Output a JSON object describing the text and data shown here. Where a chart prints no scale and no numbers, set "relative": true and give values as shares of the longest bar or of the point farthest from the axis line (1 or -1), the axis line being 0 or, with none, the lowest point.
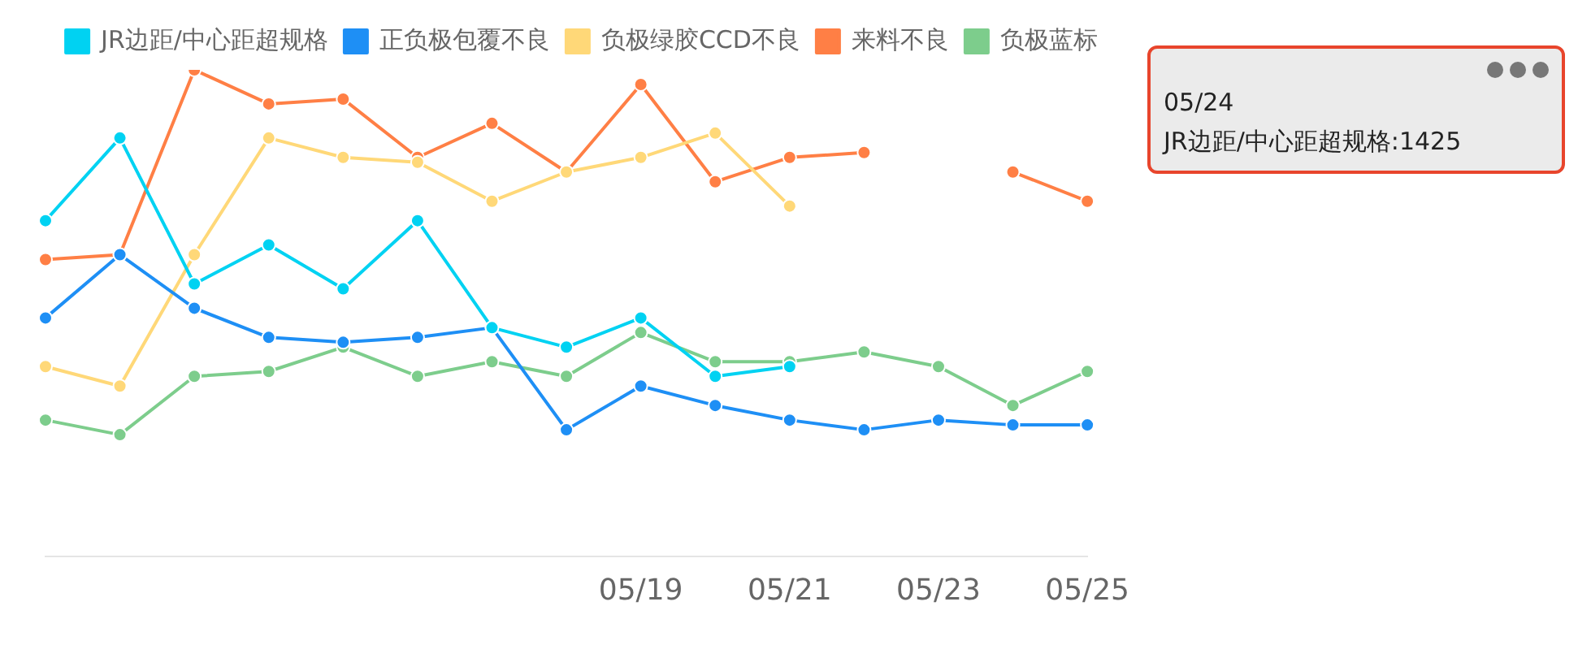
{
  "chart_data": {
    "type": "line",
    "relative": true,
    "marker": "circle",
    "legend": "top",
    "categories": [
      null,
      null,
      null,
      null,
      null,
      null,
      null,
      null,
      "05/19",
      null,
      "05/21",
      null,
      "05/23",
      null,
      "05/25"
    ],
    "series": [
      {
        "name": "JR边距/中心距超规格",
        "color": "#00d2f2",
        "values": [
          0.69,
          0.86,
          0.56,
          0.64,
          0.55,
          0.69,
          0.47,
          0.43,
          0.49,
          0.37,
          0.39,
          null,
          null,
          null,
          null
        ]
      },
      {
        "name": "正负极包覆不良",
        "color": "#1e8ff5",
        "values": [
          0.49,
          0.62,
          0.51,
          0.45,
          0.44,
          0.45,
          0.47,
          0.26,
          0.35,
          0.31,
          0.28,
          0.26,
          0.28,
          0.27,
          0.27
        ]
      },
      {
        "name": "负极绿胶CCD不良",
        "color": "#ffd878",
        "values": [
          0.39,
          0.35,
          0.62,
          0.86,
          0.82,
          0.81,
          0.73,
          0.79,
          0.82,
          0.87,
          0.72,
          null,
          null,
          null,
          null
        ]
      },
      {
        "name": "来料不良",
        "color": "#ff7f45",
        "values": [
          0.61,
          0.62,
          1.0,
          0.93,
          0.94,
          0.82,
          0.89,
          0.79,
          0.97,
          0.77,
          0.82,
          0.83,
          null,
          0.79,
          0.73
        ]
      },
      {
        "name": "负极蓝标",
        "color": "#7dcd8c",
        "values": [
          0.28,
          0.25,
          0.37,
          0.38,
          0.43,
          0.37,
          0.4,
          0.37,
          0.46,
          0.4,
          0.4,
          0.42,
          0.39,
          0.31,
          0.38
        ]
      }
    ],
    "annotations": [
      "05/24",
      "JR边距/中心距超规格:1425"
    ]
  }
}
